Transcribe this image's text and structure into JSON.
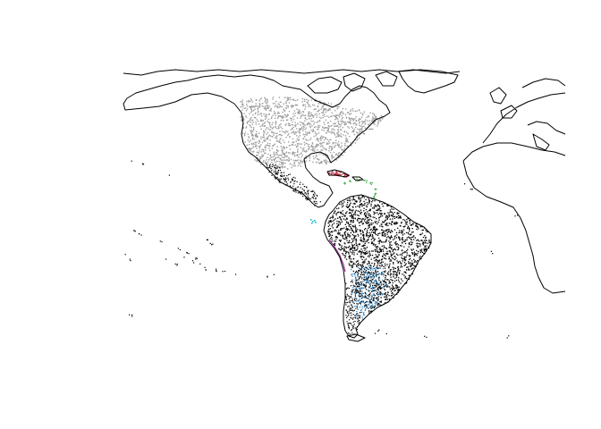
{
  "map": {
    "projection": "equirectangular",
    "extent": {
      "lon": [
        -180,
        40
      ],
      "lat": [
        -60,
        83
      ]
    },
    "colors": {
      "background": "#ffffff",
      "coastline": "#000000",
      "north_america_points": "#9e9e9e",
      "south_america_points": "#000000",
      "cuba_points": "#c0394b",
      "caribbean_coast_points": "#4caf50",
      "pacific_coast_line": "#8e2c8e",
      "patagonia_points": "#2a7fbf",
      "galapagos_points": "#17becf"
    },
    "layers": [
      "world-coastlines",
      "north-america-occurrence-points",
      "south-america-occurrence-points",
      "cuba-occurrence-points",
      "caribbean-coast-occurrence-points",
      "pacific-coast-occurrence-line",
      "patagonia-occurrence-points",
      "galapagos-occurrence-points",
      "pacific-islands-occurrence-points"
    ]
  }
}
